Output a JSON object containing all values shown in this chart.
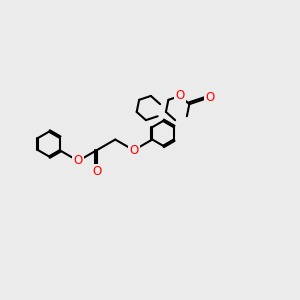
{
  "bg_color": "#ebebeb",
  "bond_color": "#000000",
  "oxygen_color": "#ff0000",
  "lw": 1.5,
  "dbo": 0.06,
  "figsize": [
    3.0,
    3.0
  ],
  "dpi": 100,
  "xlim": [
    0,
    10
  ],
  "ylim": [
    0,
    10
  ],
  "BL": 0.72
}
